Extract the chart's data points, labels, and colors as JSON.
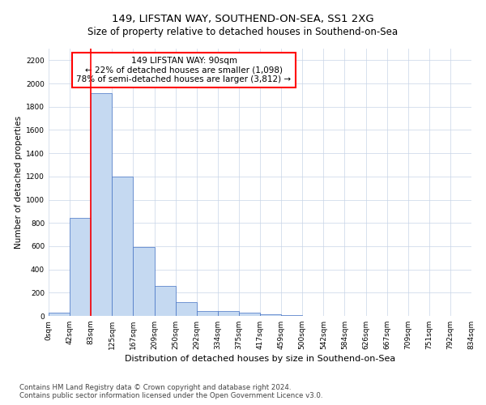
{
  "title": "149, LIFSTAN WAY, SOUTHEND-ON-SEA, SS1 2XG",
  "subtitle": "Size of property relative to detached houses in Southend-on-Sea",
  "xlabel": "Distribution of detached houses by size in Southend-on-Sea",
  "ylabel": "Number of detached properties",
  "footnote1": "Contains HM Land Registry data © Crown copyright and database right 2024.",
  "footnote2": "Contains public sector information licensed under the Open Government Licence v3.0.",
  "annotation_title": "149 LIFSTAN WAY: 90sqm",
  "annotation_line1": "← 22% of detached houses are smaller (1,098)",
  "annotation_line2": "78% of semi-detached houses are larger (3,812) →",
  "bar_color": "#c5d9f1",
  "bar_edge_color": "#4472c4",
  "vline_color": "#ff0000",
  "vline_position": 2.0,
  "tick_labels": [
    "0sqm",
    "42sqm",
    "83sqm",
    "125sqm",
    "167sqm",
    "209sqm",
    "250sqm",
    "292sqm",
    "334sqm",
    "375sqm",
    "417sqm",
    "459sqm",
    "500sqm",
    "542sqm",
    "584sqm",
    "626sqm",
    "667sqm",
    "709sqm",
    "751sqm",
    "792sqm",
    "834sqm"
  ],
  "bar_values": [
    30,
    840,
    1920,
    1200,
    590,
    260,
    120,
    40,
    40,
    25,
    15,
    5,
    0,
    0,
    0,
    0,
    0,
    0,
    0,
    0
  ],
  "ylim": [
    0,
    2300
  ],
  "yticks": [
    0,
    200,
    400,
    600,
    800,
    1000,
    1200,
    1400,
    1600,
    1800,
    2000,
    2200
  ],
  "background_color": "#ffffff",
  "grid_color": "#c8d4e8",
  "title_fontsize": 9.5,
  "subtitle_fontsize": 8.5,
  "xlabel_fontsize": 8,
  "ylabel_fontsize": 7.5,
  "tick_fontsize": 6.5,
  "annotation_fontsize": 7.5,
  "footnote_fontsize": 6.2
}
